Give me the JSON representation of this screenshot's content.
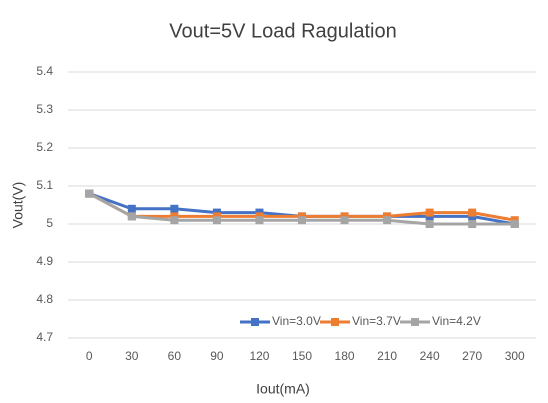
{
  "chart_data": {
    "type": "line",
    "title": "Vout=5V  Load Ragulation",
    "x_label": "Iout(mA)",
    "y_label": "Vout(V)",
    "categories": [
      0,
      30,
      60,
      90,
      120,
      150,
      180,
      210,
      240,
      270,
      300
    ],
    "series": [
      {
        "name": "Vin=3.0V",
        "color": "#4472c4",
        "values": [
          5.08,
          5.04,
          5.04,
          5.03,
          5.03,
          5.02,
          5.02,
          5.02,
          5.02,
          5.02,
          5.0
        ]
      },
      {
        "name": "Vin=3.7V",
        "color": "#ed7d31",
        "values": [
          5.08,
          5.02,
          5.02,
          5.02,
          5.02,
          5.02,
          5.02,
          5.02,
          5.03,
          5.03,
          5.01
        ]
      },
      {
        "name": "Vin=4.2V",
        "color": "#a5a5a5",
        "values": [
          5.08,
          5.02,
          5.01,
          5.01,
          5.01,
          5.01,
          5.01,
          5.01,
          5.0,
          5.0,
          5.0
        ]
      }
    ],
    "ylim": [
      4.7,
      5.4
    ],
    "yticks": [
      4.7,
      4.8,
      4.9,
      5,
      5.1,
      5.2,
      5.3,
      5.4
    ],
    "grid": true,
    "legend": "lower right"
  }
}
